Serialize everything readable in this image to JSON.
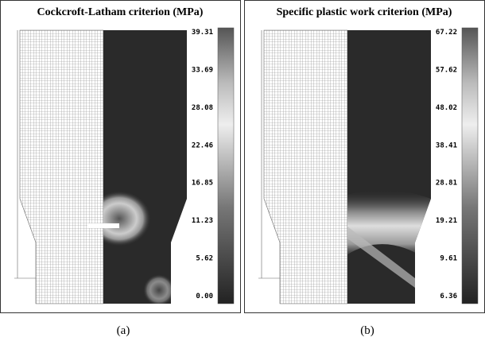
{
  "panels": [
    {
      "title": "Cockcroft-Latham criterion (MPa)",
      "colorbar_ticks": [
        "39.31",
        "33.69",
        "28.08",
        "22.46",
        "16.85",
        "11.23",
        "5.62",
        "0.00"
      ],
      "caption": "(a)"
    },
    {
      "title": "Specific plastic work criterion (MPa)",
      "colorbar_ticks": [
        "67.22",
        "57.62",
        "48.02",
        "38.41",
        "28.81",
        "19.21",
        "9.61",
        "6.36"
      ],
      "caption": "(b)"
    }
  ]
}
